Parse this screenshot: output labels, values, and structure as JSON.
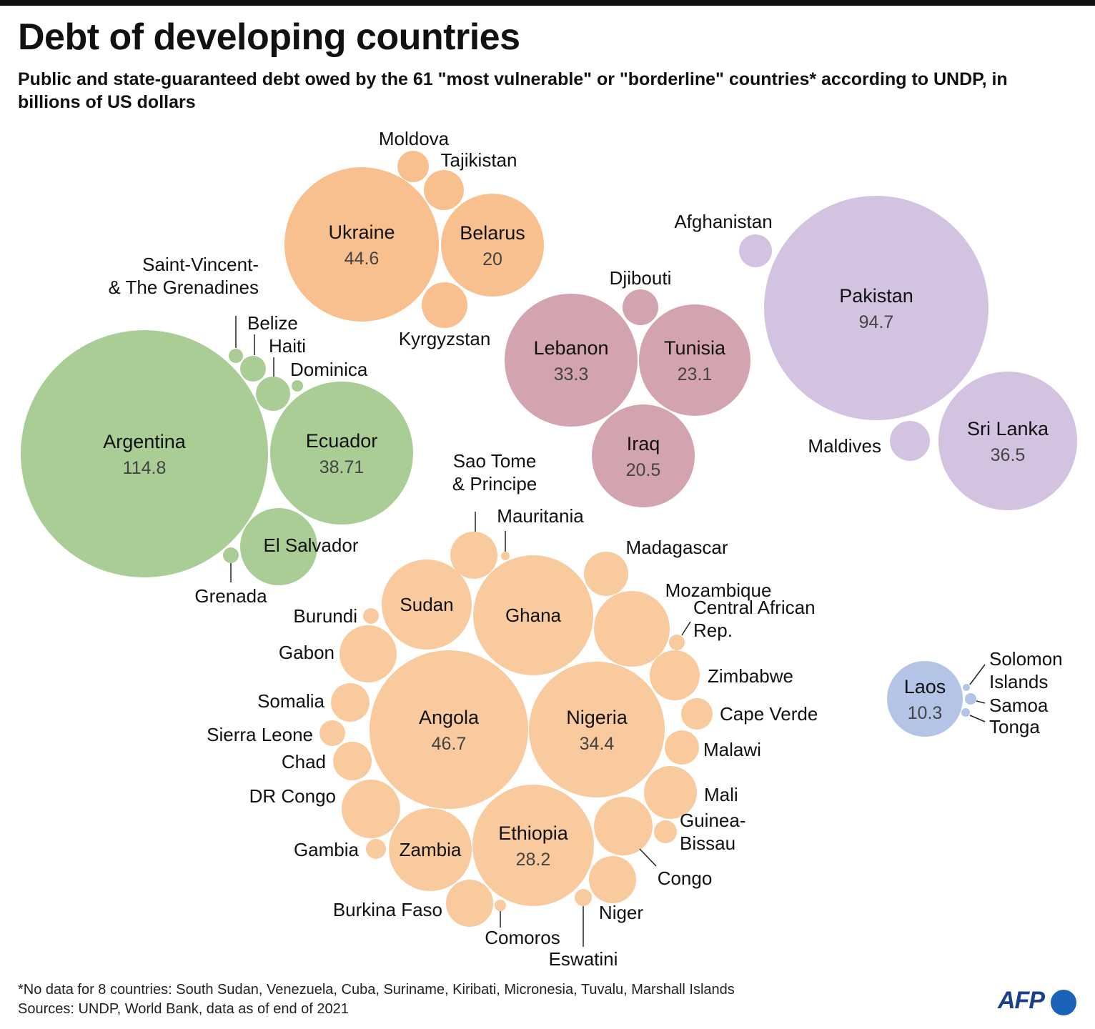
{
  "title": "Debt of developing countries",
  "subtitle": "Public and state-guaranteed debt owed by the 61 \"most vulnerable\" or \"borderline\" countries* according to UNDP, in billions of US dollars",
  "footnote": "*No data for 8 countries: South Sudan, Venezuela, Cuba, Suriname, Kiribati, Micronesia, Tuvalu, Marshall Islands",
  "source": "Sources: UNDP, World Bank, data as of end of 2021",
  "logo": "AFP",
  "chart_data": {
    "type": "bubble",
    "unit": "billions of US dollars",
    "colors": {
      "americas": "#a9cd95",
      "europe_central_asia": "#f9c08f",
      "middle_east_north_africa": "#d3a3b0",
      "south_asia": "#d3c3e1",
      "africa": "#f9ca9d",
      "east_asia_pacific": "#b3c4e6"
    },
    "countries": [
      {
        "name": "Argentina",
        "value": "114.8",
        "group": "americas"
      },
      {
        "name": "Ecuador",
        "value": "38.71",
        "group": "americas"
      },
      {
        "name": "El Salvador",
        "group": "americas"
      },
      {
        "name": "Saint-Vincent- & The Grenadines",
        "group": "americas"
      },
      {
        "name": "Belize",
        "group": "americas"
      },
      {
        "name": "Haiti",
        "group": "americas"
      },
      {
        "name": "Dominica",
        "group": "americas"
      },
      {
        "name": "Grenada",
        "group": "americas"
      },
      {
        "name": "Ukraine",
        "value": "44.6",
        "group": "europe_central_asia"
      },
      {
        "name": "Belarus",
        "value": "20",
        "group": "europe_central_asia"
      },
      {
        "name": "Moldova",
        "group": "europe_central_asia"
      },
      {
        "name": "Tajikistan",
        "group": "europe_central_asia"
      },
      {
        "name": "Kyrgyzstan",
        "group": "europe_central_asia"
      },
      {
        "name": "Lebanon",
        "value": "33.3",
        "group": "middle_east_north_africa"
      },
      {
        "name": "Tunisia",
        "value": "23.1",
        "group": "middle_east_north_africa"
      },
      {
        "name": "Iraq",
        "value": "20.5",
        "group": "middle_east_north_africa"
      },
      {
        "name": "Djibouti",
        "group": "middle_east_north_africa"
      },
      {
        "name": "Pakistan",
        "value": "94.7",
        "group": "south_asia"
      },
      {
        "name": "Sri Lanka",
        "value": "36.5",
        "group": "south_asia"
      },
      {
        "name": "Afghanistan",
        "group": "south_asia"
      },
      {
        "name": "Maldives",
        "group": "south_asia"
      },
      {
        "name": "Angola",
        "value": "46.7",
        "group": "africa"
      },
      {
        "name": "Nigeria",
        "value": "34.4",
        "group": "africa"
      },
      {
        "name": "Ethiopia",
        "value": "28.2",
        "group": "africa"
      },
      {
        "name": "Ghana",
        "group": "africa"
      },
      {
        "name": "Sudan",
        "group": "africa"
      },
      {
        "name": "Zambia",
        "group": "africa"
      },
      {
        "name": "Sao Tome & Principe",
        "group": "africa"
      },
      {
        "name": "Mauritania",
        "group": "africa"
      },
      {
        "name": "Madagascar",
        "group": "africa"
      },
      {
        "name": "Mozambique",
        "group": "africa"
      },
      {
        "name": "Central African Rep.",
        "group": "africa"
      },
      {
        "name": "Zimbabwe",
        "group": "africa"
      },
      {
        "name": "Cape Verde",
        "group": "africa"
      },
      {
        "name": "Malawi",
        "group": "africa"
      },
      {
        "name": "Mali",
        "group": "africa"
      },
      {
        "name": "Guinea-Bissau",
        "group": "africa"
      },
      {
        "name": "Congo",
        "group": "africa"
      },
      {
        "name": "Niger",
        "group": "africa"
      },
      {
        "name": "Eswatini",
        "group": "africa"
      },
      {
        "name": "Comoros",
        "group": "africa"
      },
      {
        "name": "Burkina Faso",
        "group": "africa"
      },
      {
        "name": "Gambia",
        "group": "africa"
      },
      {
        "name": "DR Congo",
        "group": "africa"
      },
      {
        "name": "Chad",
        "group": "africa"
      },
      {
        "name": "Sierra Leone",
        "group": "africa"
      },
      {
        "name": "Somalia",
        "group": "africa"
      },
      {
        "name": "Gabon",
        "group": "africa"
      },
      {
        "name": "Burundi",
        "group": "africa"
      },
      {
        "name": "Laos",
        "value": "10.3",
        "group": "east_asia_pacific"
      },
      {
        "name": "Solomon Islands",
        "group": "east_asia_pacific"
      },
      {
        "name": "Samoa",
        "group": "east_asia_pacific"
      },
      {
        "name": "Tonga",
        "group": "east_asia_pacific"
      }
    ]
  }
}
